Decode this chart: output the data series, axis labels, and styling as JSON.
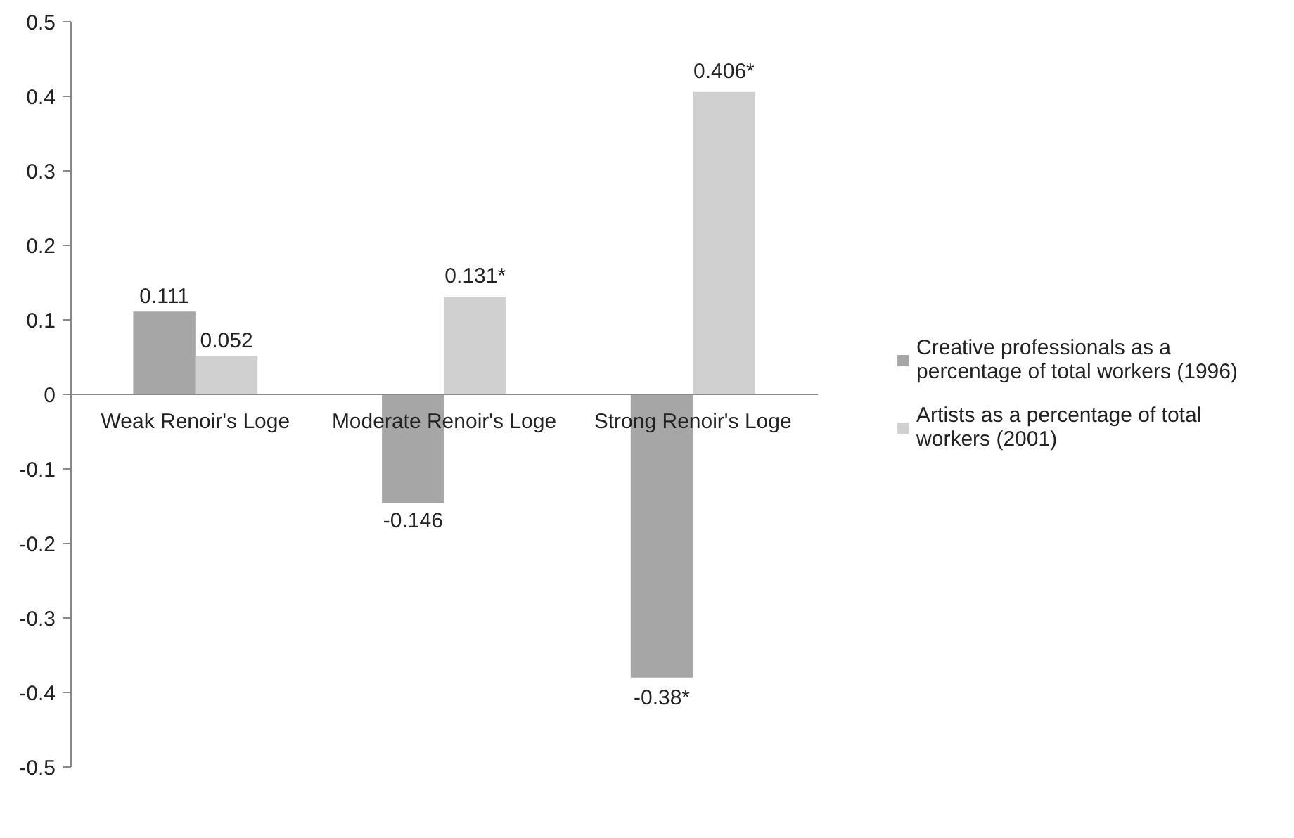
{
  "chart_data": {
    "type": "bar",
    "categories": [
      "Weak Renoir's Loge",
      "Moderate Renoir's Loge",
      "Strong Renoir's Loge"
    ],
    "series": [
      {
        "name": "Creative professionals as a percentage of total workers (1996)",
        "color": "#a6a6a6",
        "values": [
          0.111,
          -0.146,
          -0.38
        ],
        "value_labels": [
          "0.111",
          "-0.146",
          "-0.38*"
        ]
      },
      {
        "name": "Artists as a percentage of total workers (2001)",
        "color": "#d0d0d0",
        "values": [
          0.052,
          0.131,
          0.406
        ],
        "value_labels": [
          "0.052",
          "0.131*",
          "0.406*"
        ]
      }
    ],
    "ylim": [
      -0.5,
      0.5
    ],
    "yticks": [
      -0.5,
      -0.4,
      -0.3,
      -0.2,
      -0.1,
      0,
      0.1,
      0.2,
      0.3,
      0.4,
      0.5
    ],
    "grid": false,
    "legend": "right"
  }
}
